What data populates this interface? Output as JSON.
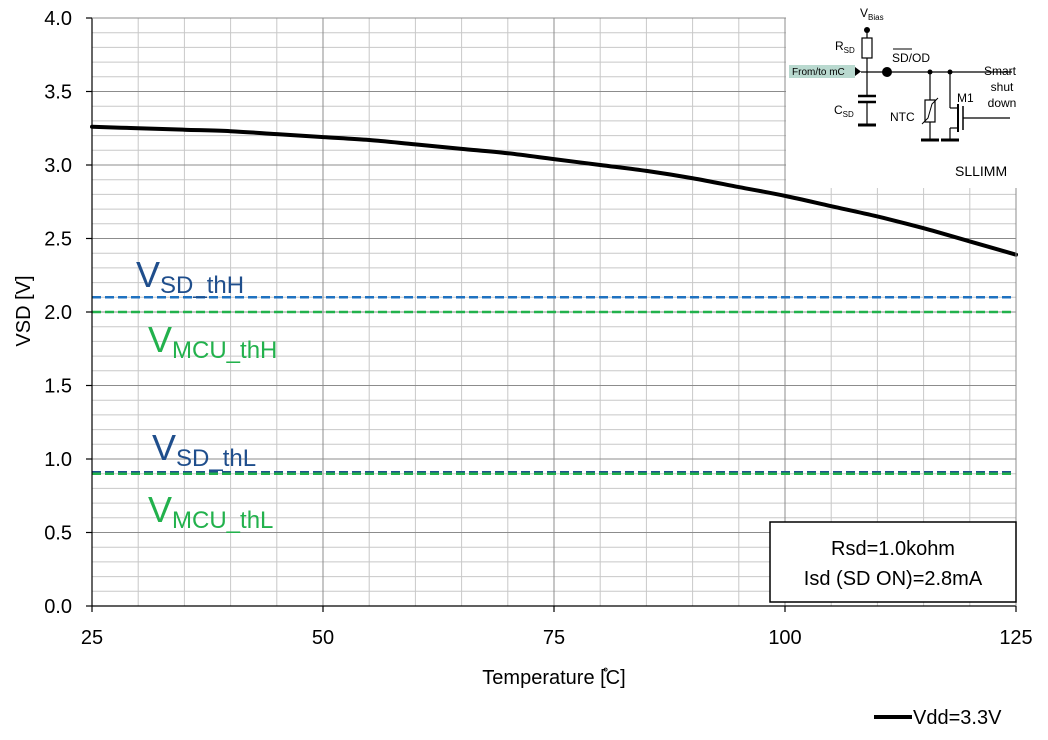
{
  "chart_data": {
    "type": "line",
    "xlabel": "Temperature [̊C]",
    "ylabel": "VSD [V]",
    "xlim": [
      25,
      125
    ],
    "ylim": [
      0,
      4
    ],
    "x_ticks": [
      "25",
      "50",
      "75",
      "100",
      "125"
    ],
    "y_ticks": [
      "0.0",
      "0.5",
      "1.0",
      "1.5",
      "2.0",
      "2.5",
      "3.0",
      "3.5",
      "4.0"
    ],
    "grid": true,
    "series": [
      {
        "name": "Vdd=3.3V",
        "color": "#000000",
        "x": [
          25,
          30,
          35,
          40,
          45,
          50,
          55,
          60,
          65,
          70,
          75,
          80,
          85,
          90,
          95,
          100,
          105,
          110,
          115,
          120,
          125
        ],
        "y": [
          3.26,
          3.25,
          3.24,
          3.23,
          3.21,
          3.19,
          3.17,
          3.14,
          3.11,
          3.08,
          3.04,
          3.0,
          2.96,
          2.91,
          2.85,
          2.79,
          2.72,
          2.65,
          2.57,
          2.48,
          2.39
        ]
      }
    ],
    "thresholds": [
      {
        "main": "V",
        "sub": "SD_thH",
        "value": 2.1,
        "color": "#1f72c0",
        "label_color": "#1f4e8c"
      },
      {
        "main": "V",
        "sub": "MCU_thH",
        "value": 2.0,
        "color": "#22b14c",
        "label_color": "#22b14c"
      },
      {
        "main": "V",
        "sub": "SD_thL",
        "value": 0.91,
        "color": "#1f4e8c",
        "label_color": "#1f4e8c"
      },
      {
        "main": "V",
        "sub": "MCU_thL",
        "value": 0.9,
        "color": "#22b14c",
        "label_color": "#22b14c"
      }
    ],
    "annotation_box": [
      "Rsd=1.0kohm",
      "Isd (SD ON)=2.8mA"
    ],
    "legend": {
      "position": "bottom-right",
      "entries": [
        "Vdd=3.3V"
      ]
    }
  },
  "schematic": {
    "vbias": {
      "main": "V",
      "sub": "Bias"
    },
    "rsd": {
      "main": "R",
      "sub": "SD"
    },
    "csd": {
      "main": "C",
      "sub": "SD"
    },
    "sd_od": "SD/OD",
    "from_to": "From/to mC",
    "smart": [
      "Smart",
      "shut",
      "down"
    ],
    "ntc": "NTC",
    "m1": "M1",
    "caption": "SLLIMM"
  }
}
